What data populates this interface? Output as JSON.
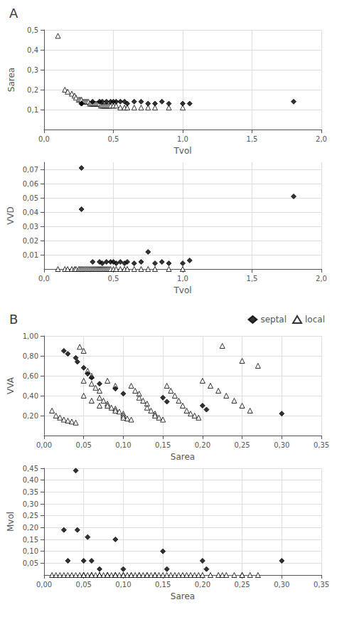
{
  "chart_data": [
    {
      "type": "scatter",
      "title": "A",
      "xlabel": "Tvol",
      "ylabel": "Sarea",
      "zlabel": "VVD",
      "xlim": [
        0.0,
        2.0
      ],
      "ylim": [
        0.0,
        0.5
      ],
      "zlim": [
        0.0,
        0.075
      ],
      "xticks": [
        {
          "value": 0.0,
          "label": "0,0"
        },
        {
          "value": 0.5,
          "label": "0,5"
        },
        {
          "value": 1.0,
          "label": "1,0"
        },
        {
          "value": 1.5,
          "label": "1,5"
        },
        {
          "value": 2.0,
          "label": "2,0"
        }
      ],
      "yticks": [
        {
          "value": 0.1,
          "label": "0,1"
        },
        {
          "value": 0.2,
          "label": "0,2"
        },
        {
          "value": 0.3,
          "label": "0,3"
        },
        {
          "value": 0.4,
          "label": "0,4"
        },
        {
          "value": 0.5,
          "label": "0,5"
        }
      ],
      "zticks": [
        {
          "value": 0.01,
          "label": "0,01"
        },
        {
          "value": 0.02,
          "label": "0,02"
        },
        {
          "value": 0.03,
          "label": "0,03"
        },
        {
          "value": 0.04,
          "label": "0,04"
        },
        {
          "value": 0.05,
          "label": "0,05"
        },
        {
          "value": 0.06,
          "label": "0,06"
        },
        {
          "value": 0.07,
          "label": "0,07"
        }
      ],
      "grid": true,
      "series": [
        {
          "name": "septal",
          "marker": "diamond",
          "color": "#000000",
          "points": [
            [
              0.27,
              0.13,
              0.071
            ],
            [
              0.27,
              0.13,
              0.042
            ],
            [
              0.35,
              0.14,
              0.005
            ],
            [
              0.4,
              0.14,
              0.005
            ],
            [
              0.42,
              0.14,
              0.004
            ],
            [
              0.45,
              0.14,
              0.005
            ],
            [
              0.48,
              0.14,
              0.005
            ],
            [
              0.5,
              0.14,
              0.005
            ],
            [
              0.52,
              0.14,
              0.004
            ],
            [
              0.55,
              0.14,
              0.005
            ],
            [
              0.58,
              0.14,
              0.004
            ],
            [
              0.6,
              0.13,
              0.005
            ],
            [
              0.65,
              0.14,
              0.004
            ],
            [
              0.7,
              0.14,
              0.005
            ],
            [
              0.75,
              0.13,
              0.012
            ],
            [
              0.8,
              0.13,
              0.004
            ],
            [
              0.85,
              0.14,
              0.005
            ],
            [
              0.9,
              0.13,
              0.004
            ],
            [
              1.0,
              0.13,
              0.004
            ],
            [
              1.05,
              0.13,
              0.006
            ],
            [
              1.8,
              0.14,
              0.051
            ]
          ]
        },
        {
          "name": "local",
          "marker": "triangle-open",
          "color": "#000000",
          "points": [
            [
              0.1,
              0.47,
              0.0
            ],
            [
              0.15,
              0.2,
              0.0
            ],
            [
              0.17,
              0.19,
              0.0
            ],
            [
              0.2,
              0.18,
              0.0
            ],
            [
              0.22,
              0.17,
              0.0
            ],
            [
              0.23,
              0.16,
              0.0
            ],
            [
              0.25,
              0.15,
              0.0
            ],
            [
              0.26,
              0.15,
              0.0
            ],
            [
              0.27,
              0.15,
              0.0
            ],
            [
              0.28,
              0.14,
              0.0
            ],
            [
              0.29,
              0.14,
              0.0
            ],
            [
              0.3,
              0.14,
              0.0
            ],
            [
              0.31,
              0.14,
              0.0
            ],
            [
              0.32,
              0.14,
              0.0
            ],
            [
              0.33,
              0.13,
              0.0
            ],
            [
              0.34,
              0.13,
              0.0
            ],
            [
              0.35,
              0.13,
              0.0
            ],
            [
              0.36,
              0.13,
              0.0
            ],
            [
              0.37,
              0.13,
              0.0
            ],
            [
              0.38,
              0.13,
              0.0
            ],
            [
              0.39,
              0.13,
              0.0
            ],
            [
              0.4,
              0.13,
              0.0
            ],
            [
              0.41,
              0.12,
              0.0
            ],
            [
              0.42,
              0.12,
              0.0
            ],
            [
              0.43,
              0.12,
              0.0
            ],
            [
              0.44,
              0.12,
              0.0
            ],
            [
              0.45,
              0.12,
              0.0
            ],
            [
              0.46,
              0.12,
              0.0
            ],
            [
              0.47,
              0.12,
              0.0
            ],
            [
              0.48,
              0.12,
              0.0
            ],
            [
              0.5,
              0.12,
              0.0
            ],
            [
              0.52,
              0.12,
              0.0
            ],
            [
              0.55,
              0.11,
              0.0
            ],
            [
              0.58,
              0.11,
              0.0
            ],
            [
              0.6,
              0.11,
              0.0
            ],
            [
              0.65,
              0.11,
              0.0
            ],
            [
              0.7,
              0.11,
              0.0
            ],
            [
              0.75,
              0.11,
              0.0
            ],
            [
              0.8,
              0.11,
              0.0
            ],
            [
              0.9,
              0.11,
              0.0
            ],
            [
              1.0,
              0.11,
              0.0
            ]
          ]
        }
      ]
    },
    {
      "type": "scatter",
      "title": "B",
      "xlabel": "Sarea",
      "ylabel": "VVA",
      "zlabel": "Mvol",
      "xlim": [
        0.0,
        0.35
      ],
      "ylim": [
        0.0,
        1.0
      ],
      "zlim": [
        0.0,
        0.45
      ],
      "xticks": [
        {
          "value": 0.0,
          "label": "0,00"
        },
        {
          "value": 0.05,
          "label": "0,05"
        },
        {
          "value": 0.1,
          "label": "0,10"
        },
        {
          "value": 0.15,
          "label": "0,15"
        },
        {
          "value": 0.2,
          "label": "0,20"
        },
        {
          "value": 0.25,
          "label": "0,25"
        },
        {
          "value": 0.3,
          "label": "0,30"
        },
        {
          "value": 0.35,
          "label": "0,35"
        }
      ],
      "yticks": [
        {
          "value": 0.2,
          "label": "0,20"
        },
        {
          "value": 0.4,
          "label": "0,40"
        },
        {
          "value": 0.6,
          "label": "0,60"
        },
        {
          "value": 0.8,
          "label": "0,80"
        },
        {
          "value": 1.0,
          "label": "1,00"
        }
      ],
      "zticks": [
        {
          "value": 0.05,
          "label": "0,05"
        },
        {
          "value": 0.1,
          "label": "0,10"
        },
        {
          "value": 0.15,
          "label": "0,15"
        },
        {
          "value": 0.2,
          "label": "0,20"
        },
        {
          "value": 0.25,
          "label": "0,25"
        },
        {
          "value": 0.3,
          "label": "0,30"
        },
        {
          "value": 0.35,
          "label": "0,35"
        },
        {
          "value": 0.4,
          "label": "0,40"
        },
        {
          "value": 0.45,
          "label": "0,45"
        }
      ],
      "grid": true,
      "legend": "upper right",
      "series": [
        {
          "name": "septal",
          "marker": "diamond",
          "color": "#000000",
          "points": [
            [
              0.025,
              0.85,
              0.19
            ],
            [
              0.03,
              0.82,
              0.06
            ],
            [
              0.04,
              0.78,
              0.44
            ],
            [
              0.042,
              0.74,
              0.19
            ],
            [
              0.05,
              0.68,
              0.06
            ],
            [
              0.055,
              0.62,
              0.16
            ],
            [
              0.06,
              0.58,
              0.06
            ],
            [
              0.07,
              0.52,
              0.025
            ],
            [
              0.09,
              0.47,
              0.15
            ],
            [
              0.1,
              0.42,
              0.025
            ],
            [
              0.15,
              0.38,
              0.1
            ],
            [
              0.155,
              0.34,
              0.025
            ],
            [
              0.2,
              0.3,
              0.06
            ],
            [
              0.205,
              0.26,
              0.025
            ],
            [
              0.3,
              0.22,
              0.06
            ]
          ]
        },
        {
          "name": "local",
          "marker": "triangle-open",
          "color": "#000000",
          "points": [
            [
              0.01,
              0.25,
              0.0
            ],
            [
              0.015,
              0.2,
              0.0
            ],
            [
              0.02,
              0.18,
              0.0
            ],
            [
              0.025,
              0.16,
              0.0
            ],
            [
              0.03,
              0.15,
              0.0
            ],
            [
              0.035,
              0.14,
              0.0
            ],
            [
              0.04,
              0.13,
              0.0
            ],
            [
              0.045,
              0.89,
              0.0
            ],
            [
              0.05,
              0.85,
              0.0
            ],
            [
              0.05,
              0.55,
              0.0
            ],
            [
              0.055,
              0.65,
              0.0
            ],
            [
              0.06,
              0.6,
              0.0
            ],
            [
              0.06,
              0.52,
              0.0
            ],
            [
              0.065,
              0.48,
              0.0
            ],
            [
              0.07,
              0.45,
              0.0
            ],
            [
              0.07,
              0.38,
              0.0
            ],
            [
              0.075,
              0.35,
              0.0
            ],
            [
              0.08,
              0.32,
              0.0
            ],
            [
              0.08,
              0.3,
              0.0
            ],
            [
              0.085,
              0.28,
              0.0
            ],
            [
              0.09,
              0.27,
              0.0
            ],
            [
              0.09,
              0.25,
              0.0
            ],
            [
              0.095,
              0.24,
              0.0
            ],
            [
              0.1,
              0.22,
              0.0
            ],
            [
              0.1,
              0.2,
              0.0
            ],
            [
              0.1,
              0.18,
              0.0
            ],
            [
              0.105,
              0.17,
              0.0
            ],
            [
              0.11,
              0.16,
              0.0
            ],
            [
              0.11,
              0.5,
              0.0
            ],
            [
              0.115,
              0.45,
              0.0
            ],
            [
              0.12,
              0.42,
              0.0
            ],
            [
              0.12,
              0.38,
              0.0
            ],
            [
              0.125,
              0.35,
              0.0
            ],
            [
              0.13,
              0.32,
              0.0
            ],
            [
              0.13,
              0.28,
              0.0
            ],
            [
              0.135,
              0.25,
              0.0
            ],
            [
              0.14,
              0.22,
              0.0
            ],
            [
              0.14,
              0.2,
              0.0
            ],
            [
              0.145,
              0.18,
              0.0
            ],
            [
              0.15,
              0.16,
              0.0
            ],
            [
              0.155,
              0.5,
              0.0
            ],
            [
              0.16,
              0.45,
              0.0
            ],
            [
              0.165,
              0.4,
              0.0
            ],
            [
              0.17,
              0.35,
              0.0
            ],
            [
              0.175,
              0.3,
              0.0
            ],
            [
              0.18,
              0.25,
              0.0
            ],
            [
              0.185,
              0.22,
              0.0
            ],
            [
              0.19,
              0.2,
              0.0
            ],
            [
              0.195,
              0.18,
              0.0
            ],
            [
              0.2,
              0.55,
              0.0
            ],
            [
              0.21,
              0.5,
              0.0
            ],
            [
              0.22,
              0.45,
              0.0
            ],
            [
              0.225,
              0.9,
              0.0
            ],
            [
              0.23,
              0.4,
              0.0
            ],
            [
              0.24,
              0.35,
              0.0
            ],
            [
              0.25,
              0.3,
              0.0
            ],
            [
              0.25,
              0.75,
              0.0
            ],
            [
              0.26,
              0.25,
              0.0
            ],
            [
              0.27,
              0.7,
              0.0
            ],
            [
              0.05,
              0.4,
              0.0
            ],
            [
              0.06,
              0.35,
              0.0
            ],
            [
              0.07,
              0.3,
              0.0
            ],
            [
              0.08,
              0.55,
              0.0
            ],
            [
              0.09,
              0.5,
              0.0
            ]
          ]
        }
      ]
    }
  ]
}
